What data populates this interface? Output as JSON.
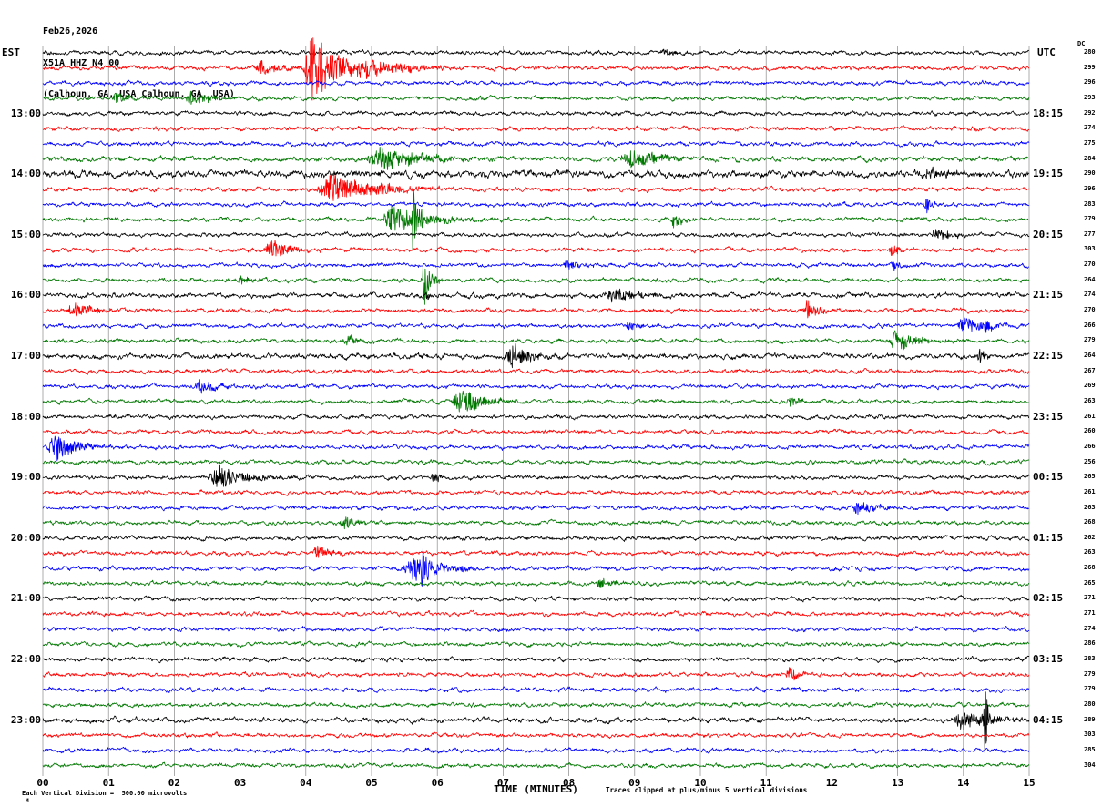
{
  "title": {
    "date": "Feb26,2026",
    "station": "X51A HHZ N4 00",
    "location": "(Calhoun, GA, USA Calhoun, GA, USA)"
  },
  "axes": {
    "left_header": "EST",
    "right_header": "UTC",
    "dc_header": "DC",
    "x_title": "TIME (MINUTES)",
    "x_ticks": [
      "00",
      "01",
      "02",
      "03",
      "04",
      "05",
      "06",
      "07",
      "08",
      "09",
      "10",
      "11",
      "12",
      "13",
      "14",
      "15"
    ]
  },
  "footer": {
    "scale_note": "Each Vertical Division =  500.00 microvolts",
    "clip_note": "Traces clipped at plus/minus 5 vertical divisions",
    "corner_mark": "M"
  },
  "chart_data": {
    "type": "line",
    "subtype": "helicorder-seismogram",
    "title": "X51A HHZ N4 00 webicorder, Feb26,2026, Calhoun GA USA",
    "xlabel": "TIME (MINUTES)",
    "x_range": [
      0,
      15
    ],
    "minutes_per_line": 15,
    "lines_per_hour": 4,
    "grid": "vertical-minute-lines",
    "trace_colors_cycle": [
      "#000000",
      "#ff0000",
      "#0000ff",
      "#007700"
    ],
    "note": "Traces are band-limited noise; events are amplitude bursts given as [start_minute, duration_minutes, peak_amplitude_px]; traces clipped at plus/minus 5 vertical divisions (500 microvolts each).",
    "hours": [
      {
        "row": 4,
        "est": "13:00",
        "utc": "18:15"
      },
      {
        "row": 8,
        "est": "14:00",
        "utc": "19:15"
      },
      {
        "row": 12,
        "est": "15:00",
        "utc": "20:15"
      },
      {
        "row": 16,
        "est": "16:00",
        "utc": "21:15"
      },
      {
        "row": 20,
        "est": "17:00",
        "utc": "22:15"
      },
      {
        "row": 24,
        "est": "18:00",
        "utc": "23:15"
      },
      {
        "row": 28,
        "est": "19:00",
        "utc": "00:15"
      },
      {
        "row": 32,
        "est": "20:00",
        "utc": "01:15"
      },
      {
        "row": 36,
        "est": "21:00",
        "utc": "02:15"
      },
      {
        "row": 40,
        "est": "22:00",
        "utc": "03:15"
      },
      {
        "row": 44,
        "est": "23:00",
        "utc": "04:15"
      }
    ],
    "rows": [
      {
        "dc": 280,
        "events": [
          [
            9.3,
            0.4,
            4
          ]
        ]
      },
      {
        "dc": 299,
        "events": [
          [
            3.2,
            0.5,
            8
          ],
          [
            3.95,
            0.6,
            38
          ],
          [
            4.6,
            1.0,
            10
          ]
        ]
      },
      {
        "dc": 296,
        "events": []
      },
      {
        "dc": 293,
        "events": [
          [
            1.05,
            0.3,
            7
          ],
          [
            2.15,
            0.45,
            8
          ]
        ]
      },
      {
        "dc": 292,
        "events": []
      },
      {
        "dc": 274,
        "events": []
      },
      {
        "dc": 275,
        "events": []
      },
      {
        "dc": 284,
        "noise": 1.2,
        "events": [
          [
            4.9,
            0.9,
            14
          ],
          [
            8.75,
            0.8,
            10
          ]
        ]
      },
      {
        "dc": 290,
        "noise": 1.7,
        "events": [
          [
            13.3,
            0.6,
            5
          ]
        ]
      },
      {
        "dc": 296,
        "events": [
          [
            4.15,
            0.9,
            16
          ],
          [
            5.05,
            0.4,
            8
          ]
        ]
      },
      {
        "dc": 283,
        "events": [
          [
            13.4,
            0.15,
            9
          ]
        ]
      },
      {
        "dc": 279,
        "events": [
          [
            5.15,
            0.7,
            18
          ],
          [
            5.6,
            0.12,
            40
          ],
          [
            9.55,
            0.2,
            10
          ]
        ]
      },
      {
        "dc": 277,
        "events": [
          [
            13.5,
            0.35,
            9
          ]
        ]
      },
      {
        "dc": 303,
        "events": [
          [
            3.35,
            0.45,
            10
          ],
          [
            12.85,
            0.2,
            8
          ]
        ]
      },
      {
        "dc": 270,
        "events": [
          [
            7.9,
            0.3,
            6
          ],
          [
            12.9,
            0.15,
            6
          ]
        ]
      },
      {
        "dc": 264,
        "events": [
          [
            2.95,
            0.3,
            5
          ],
          [
            5.75,
            0.15,
            32
          ]
        ]
      },
      {
        "dc": 274,
        "noise": 1.2,
        "events": [
          [
            5.8,
            0.1,
            6
          ],
          [
            8.5,
            0.7,
            7
          ]
        ]
      },
      {
        "dc": 270,
        "events": [
          [
            0.35,
            0.5,
            8
          ],
          [
            11.55,
            0.25,
            12
          ]
        ]
      },
      {
        "dc": 266,
        "events": [
          [
            8.85,
            0.3,
            6
          ],
          [
            13.9,
            0.45,
            10
          ],
          [
            14.3,
            0.12,
            10
          ]
        ]
      },
      {
        "dc": 279,
        "events": [
          [
            4.55,
            0.3,
            6
          ],
          [
            12.85,
            0.45,
            13
          ]
        ]
      },
      {
        "dc": 264,
        "noise": 1.3,
        "events": [
          [
            7.0,
            0.5,
            13
          ],
          [
            14.2,
            0.12,
            12
          ]
        ]
      },
      {
        "dc": 267,
        "events": []
      },
      {
        "dc": 269,
        "events": [
          [
            2.3,
            0.35,
            8
          ]
        ]
      },
      {
        "dc": 263,
        "events": [
          [
            6.2,
            0.55,
            15
          ],
          [
            11.3,
            0.2,
            8
          ]
        ]
      },
      {
        "dc": 261,
        "events": []
      },
      {
        "dc": 260,
        "events": []
      },
      {
        "dc": 266,
        "events": [
          [
            0.05,
            0.5,
            16
          ]
        ]
      },
      {
        "dc": 256,
        "events": []
      },
      {
        "dc": 265,
        "events": [
          [
            2.5,
            0.65,
            13
          ],
          [
            5.9,
            0.12,
            10
          ]
        ]
      },
      {
        "dc": 261,
        "events": []
      },
      {
        "dc": 263,
        "events": [
          [
            12.3,
            0.4,
            8
          ]
        ]
      },
      {
        "dc": 268,
        "events": [
          [
            4.5,
            0.3,
            8
          ]
        ]
      },
      {
        "dc": 262,
        "events": []
      },
      {
        "dc": 263,
        "events": [
          [
            4.1,
            0.3,
            9
          ]
        ]
      },
      {
        "dc": 268,
        "events": [
          [
            5.45,
            0.7,
            13
          ],
          [
            5.75,
            0.1,
            36
          ]
        ]
      },
      {
        "dc": 265,
        "events": [
          [
            8.4,
            0.25,
            7
          ]
        ]
      },
      {
        "dc": 271,
        "events": []
      },
      {
        "dc": 271,
        "events": []
      },
      {
        "dc": 274,
        "events": []
      },
      {
        "dc": 286,
        "events": []
      },
      {
        "dc": 283,
        "events": []
      },
      {
        "dc": 279,
        "events": [
          [
            11.3,
            0.18,
            12
          ]
        ]
      },
      {
        "dc": 279,
        "events": []
      },
      {
        "dc": 280,
        "events": []
      },
      {
        "dc": 289,
        "noise": 1.2,
        "events": [
          [
            13.8,
            0.6,
            11
          ],
          [
            14.3,
            0.1,
            40
          ]
        ]
      },
      {
        "dc": 303,
        "events": []
      },
      {
        "dc": 285,
        "events": []
      },
      {
        "dc": 304,
        "events": []
      }
    ]
  }
}
